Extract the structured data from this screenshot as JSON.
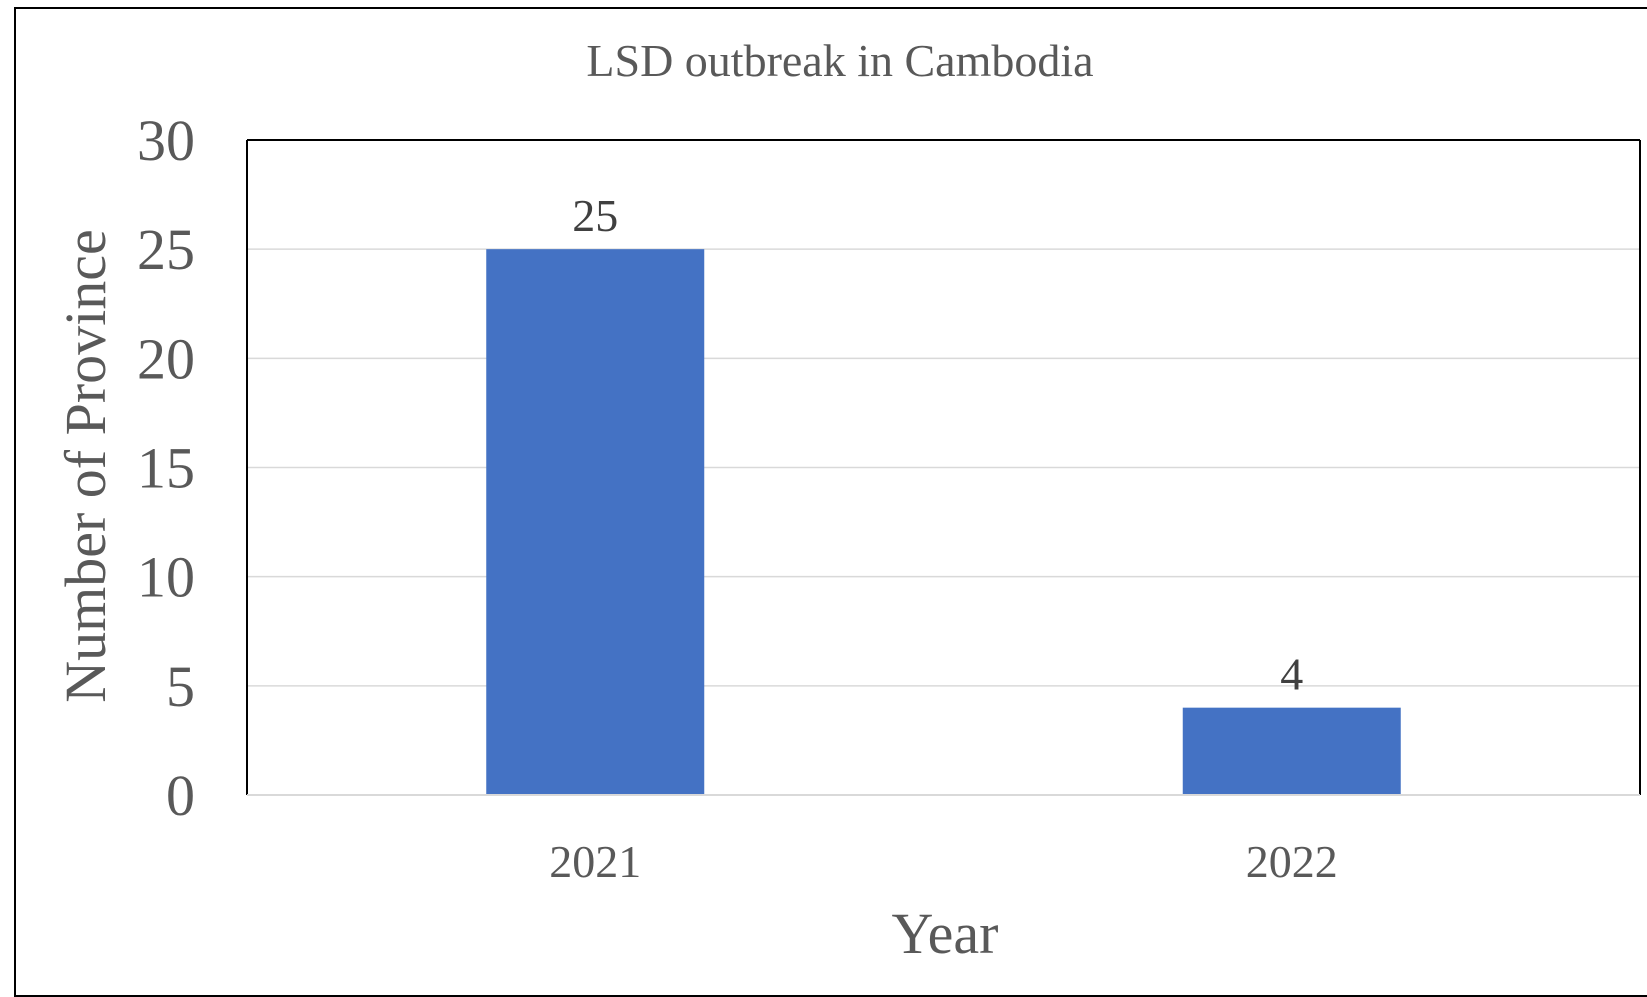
{
  "chart_data": {
    "type": "bar",
    "title": "LSD outbreak in Cambodia",
    "xlabel": "Year",
    "ylabel": "Number of Province",
    "categories": [
      "2021",
      "2022"
    ],
    "series": [
      {
        "values": [
          25,
          4
        ],
        "color": "#4472C4"
      }
    ],
    "data_labels": [
      "25",
      "4"
    ],
    "ylim": [
      0,
      30
    ],
    "yticks": [
      0,
      5,
      10,
      15,
      20,
      25,
      30
    ],
    "ytick_labels": [
      "0",
      "5",
      "10",
      "15",
      "20",
      "25",
      "30"
    ],
    "grid": true,
    "legend": "none"
  }
}
